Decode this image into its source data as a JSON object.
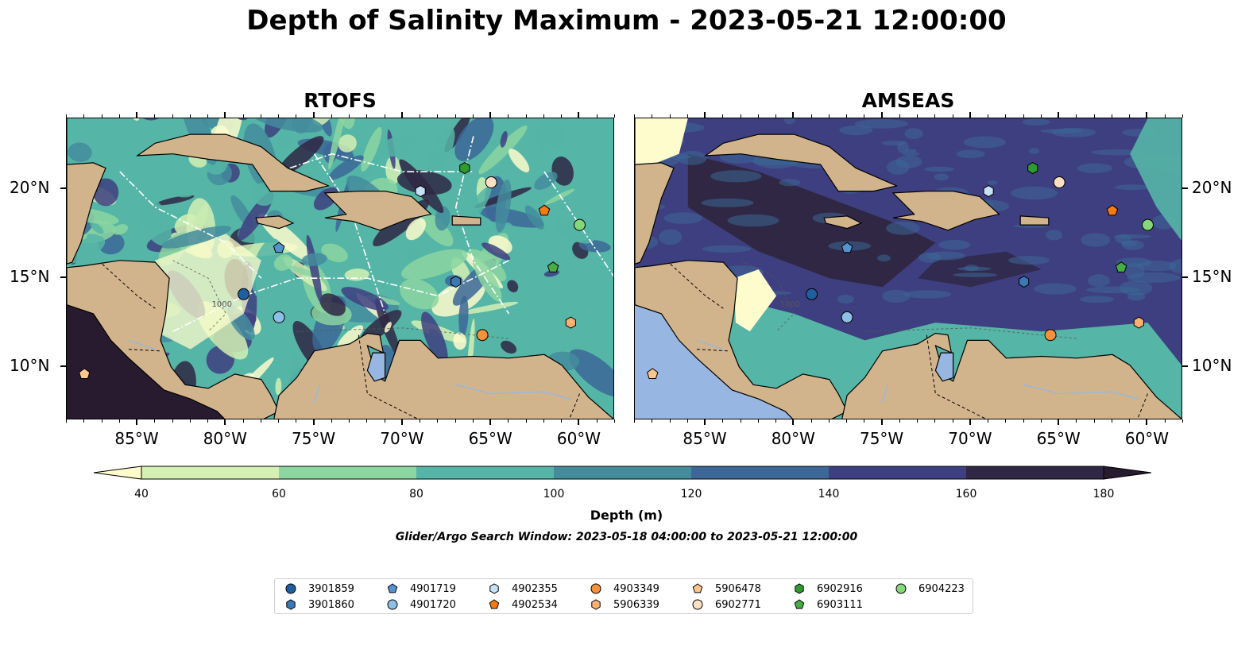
{
  "figure": {
    "title": "Depth of Salinity Maximum - 2023-05-21 12:00:00",
    "search_window": "Glider/Argo Search Window: 2023-05-18 04:00:00 to 2023-05-21 12:00:00"
  },
  "panels": [
    {
      "title": "RTOFS",
      "palette": "ramp"
    },
    {
      "title": "AMSEAS",
      "palette": "deep"
    }
  ],
  "axes": {
    "lon_ticks": [
      "85°W",
      "80°W",
      "75°W",
      "70°W",
      "65°W",
      "60°W"
    ],
    "lat_ticks": [
      "20°N",
      "15°N",
      "10°N"
    ],
    "lon_values": [
      -85,
      -80,
      -75,
      -70,
      -65,
      -60
    ],
    "lat_values": [
      20,
      15,
      10
    ],
    "lon_range": [
      -89,
      -58
    ],
    "lat_range": [
      7,
      24
    ]
  },
  "colorbar": {
    "label": "Depth (m)",
    "tick_labels": [
      "40",
      "60",
      "80",
      "100",
      "120",
      "140",
      "160",
      "180"
    ],
    "levels": [
      40,
      60,
      80,
      100,
      120,
      140,
      160,
      180
    ],
    "extend": "both",
    "colors": [
      "#fefccc",
      "#d4f0b4",
      "#8cd5a1",
      "#55b5a6",
      "#448c9c",
      "#3c6796",
      "#3e3f80",
      "#2f2744",
      "#281b30"
    ]
  },
  "colors": {
    "land": "#d2b48c",
    "water_body": "#97b6e1",
    "river": "#9bb8d4"
  },
  "legend": {
    "items": [
      {
        "label": "3901859",
        "marker": "circle",
        "color": "#1f5fa0"
      },
      {
        "label": "3901860",
        "marker": "hexagon",
        "color": "#3b78b5"
      },
      {
        "label": "4901719",
        "marker": "pentagon",
        "color": "#5493d0"
      },
      {
        "label": "4901720",
        "marker": "circle",
        "color": "#8ebfe6"
      },
      {
        "label": "4902355",
        "marker": "hexagon",
        "color": "#c6e0f5"
      },
      {
        "label": "4902534",
        "marker": "pentagon",
        "color": "#f47a12"
      },
      {
        "label": "4903349",
        "marker": "circle",
        "color": "#f5913a"
      },
      {
        "label": "5906339",
        "marker": "hexagon",
        "color": "#fbb071"
      },
      {
        "label": "5906478",
        "marker": "pentagon",
        "color": "#fcc68e"
      },
      {
        "label": "6902771",
        "marker": "circle",
        "color": "#fde0c4"
      },
      {
        "label": "6902916",
        "marker": "hexagon",
        "color": "#2f9b2f"
      },
      {
        "label": "6903111",
        "marker": "pentagon",
        "color": "#47ad47"
      },
      {
        "label": "6904223",
        "marker": "circle",
        "color": "#86d77a"
      }
    ]
  },
  "floats": [
    {
      "id": "3901859",
      "lon": -79.0,
      "lat": 14.1
    },
    {
      "id": "3901860",
      "lon": -67.0,
      "lat": 14.8
    },
    {
      "id": "4901719",
      "lon": -77.0,
      "lat": 16.7
    },
    {
      "id": "4901720",
      "lon": -77.0,
      "lat": 12.8
    },
    {
      "id": "4902355",
      "lon": -69.0,
      "lat": 19.9
    },
    {
      "id": "4902534",
      "lon": -62.0,
      "lat": 18.8
    },
    {
      "id": "4903349",
      "lon": -65.5,
      "lat": 11.8
    },
    {
      "id": "5906339",
      "lon": -60.5,
      "lat": 12.5
    },
    {
      "id": "5906478",
      "lon": -88.0,
      "lat": 9.6
    },
    {
      "id": "6902771",
      "lon": -65.0,
      "lat": 20.4
    },
    {
      "id": "6902916",
      "lon": -66.5,
      "lat": 21.2
    },
    {
      "id": "6903111",
      "lon": -61.5,
      "lat": 15.6
    },
    {
      "id": "6904223",
      "lon": -60.0,
      "lat": 18.0
    }
  ],
  "contour_labels": [
    "1000"
  ]
}
